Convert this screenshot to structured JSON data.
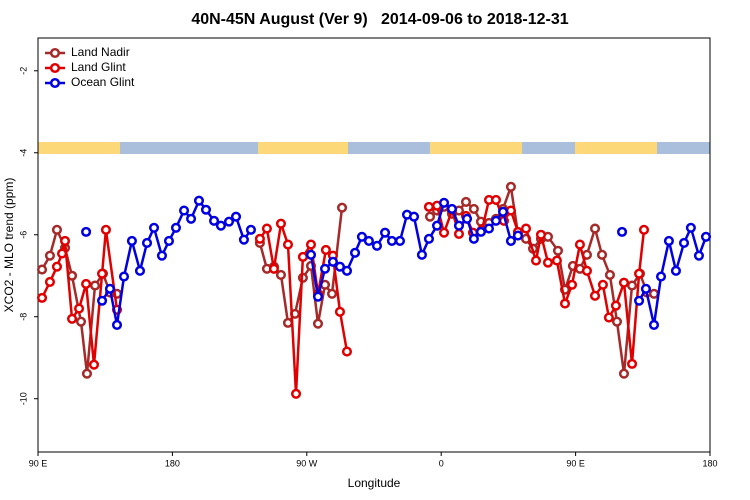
{
  "chart_data": {
    "type": "line",
    "title": "40N-45N August (Ver 9)   2014-09-06 to 2018-12-31",
    "x_label": "Longitude",
    "y_label": "XCO2 - MLO trend (ppm)",
    "xlim": [
      90,
      540
    ],
    "ylim": [
      -11.3,
      -1.2
    ],
    "xticks": [
      {
        "value": 90,
        "label": "90 E"
      },
      180,
      {
        "value": 270,
        "label": "90 W"
      },
      {
        "value": 360,
        "label": "0"
      },
      {
        "value": 450,
        "label": "90 E"
      },
      {
        "value": 540,
        "label": "180"
      }
    ],
    "yticks": [
      -2,
      -4,
      -6,
      -8,
      -10
    ],
    "legend": "top-left",
    "series": [
      {
        "name": "Land Nadir",
        "color": "#a52a2a",
        "x": [
          92.7,
          98.0,
          102.7,
          108.1,
          112.8,
          118.8,
          122.8,
          128.2,
          133.5,
          138.2,
          142.9,
          null,
          238.6,
          243.3,
          248.0,
          252.7,
          257.4,
          262.1,
          267.4,
          272.8,
          277.5,
          282.2,
          286.9,
          293.6,
          null,
          352.5,
          357.2,
          361.9,
          367.2,
          371.9,
          376.6,
          381.9,
          386.6,
          392.0,
          396.7,
          401.4,
          406.7,
          411.4,
          416.8,
          421.5,
          426.8,
          431.5,
          438.2,
          442.9,
          448.2,
          452.9,
          457.6,
          463.0,
          467.7,
          473.0,
          477.7,
          482.4,
          487.8,
          493.1,
          497.8,
          502.5
        ],
        "values": [
          -6.85,
          -6.51,
          -5.88,
          -6.32,
          -7.0,
          -8.12,
          -9.39,
          -7.24,
          -6.95,
          -7.41,
          -7.44,
          null,
          -6.2,
          -6.83,
          -6.78,
          -6.98,
          -8.15,
          -7.93,
          -7.05,
          -6.76,
          -8.17,
          -7.22,
          -7.44,
          -5.34,
          null,
          -5.56,
          -5.41,
          -5.32,
          -5.49,
          -5.41,
          -5.2,
          -5.37,
          -5.68,
          -5.71,
          -5.61,
          -5.37,
          -4.83,
          -5.98,
          -6.1,
          -6.34,
          -6.1,
          -6.05,
          -6.39,
          -7.34,
          -6.76,
          -6.83,
          -6.49,
          -5.85,
          -6.49,
          -6.98,
          -8.12,
          -9.39,
          -7.24,
          -6.95,
          -7.41,
          -7.44
        ]
      },
      {
        "name": "Land Glint",
        "color": "#e00000",
        "x": [
          92.7,
          98.0,
          102.7,
          106.1,
          108.1,
          112.8,
          117.5,
          122.2,
          127.5,
          132.9,
          135.5,
          142.9,
          null,
          238.6,
          243.3,
          248.0,
          252.7,
          257.4,
          262.8,
          267.4,
          272.8,
          277.5,
          282.8,
          287.5,
          292.2,
          296.9,
          null,
          351.8,
          357.2,
          361.9,
          367.2,
          371.9,
          376.6,
          381.3,
          387.3,
          392.0,
          396.7,
          402.0,
          406.7,
          411.4,
          416.8,
          423.5,
          426.8,
          431.5,
          437.5,
          442.9,
          447.6,
          452.9,
          457.6,
          463.0,
          468.3,
          472.3,
          477.0,
          482.4,
          487.8,
          492.5,
          495.8
        ],
        "values": [
          -7.54,
          -7.15,
          -6.78,
          -6.46,
          -6.15,
          -8.05,
          -7.8,
          -7.2,
          -9.17,
          -6.95,
          -5.88,
          -7.83,
          null,
          -6.1,
          -5.85,
          -6.83,
          -5.73,
          -6.24,
          -9.88,
          -6.54,
          -6.24,
          -7.44,
          -6.37,
          -6.51,
          -7.88,
          -8.85,
          null,
          -5.32,
          -5.29,
          -5.95,
          -5.41,
          -5.98,
          -5.54,
          -5.95,
          -5.88,
          -5.15,
          -5.15,
          -5.66,
          -5.41,
          -5.93,
          -5.85,
          -6.63,
          -6.0,
          -6.68,
          -6.63,
          -7.68,
          -7.22,
          -6.24,
          -6.88,
          -7.49,
          -7.22,
          -8.02,
          -7.73,
          -7.17,
          -9.15,
          -6.95,
          -5.88
        ]
      },
      {
        "name": "Ocean Glint",
        "color": "#0000e0",
        "x": [
          122.2,
          null,
          132.9,
          138.2,
          142.9,
          147.6,
          152.9,
          158.3,
          163.0,
          167.7,
          173.0,
          177.7,
          182.4,
          187.8,
          192.5,
          197.8,
          202.5,
          207.9,
          212.5,
          217.9,
          222.6,
          227.9,
          232.6,
          null,
          272.8,
          277.5,
          282.2,
          287.5,
          292.2,
          296.9,
          302.3,
          306.9,
          311.6,
          317.0,
          322.4,
          327.0,
          332.4,
          337.1,
          341.8,
          347.1,
          351.8,
          357.2,
          361.9,
          367.2,
          371.9,
          377.3,
          381.9,
          386.6,
          392.0,
          396.7,
          401.4,
          406.7,
          411.4,
          null,
          481.1,
          null,
          492.5,
          497.1,
          502.5,
          507.2,
          512.5,
          517.2,
          522.6,
          527.2,
          532.6,
          537.3
        ],
        "values": [
          -5.93,
          null,
          -7.61,
          -7.32,
          -8.2,
          -7.02,
          -6.15,
          -6.88,
          -6.2,
          -5.83,
          -6.51,
          -6.15,
          -5.83,
          -5.41,
          -5.61,
          -5.17,
          -5.39,
          -5.66,
          -5.78,
          -5.68,
          -5.56,
          -6.12,
          -5.88,
          null,
          -6.49,
          -7.51,
          -6.83,
          -6.66,
          -6.78,
          -6.88,
          -6.44,
          -6.05,
          -6.15,
          -6.27,
          -5.95,
          -6.15,
          -6.15,
          -5.51,
          -5.56,
          -6.49,
          -6.1,
          -5.78,
          -5.22,
          -5.37,
          -5.78,
          -5.61,
          -6.1,
          -5.93,
          -5.85,
          -5.66,
          -5.44,
          -6.15,
          -6.02,
          null,
          -5.93,
          null,
          -7.61,
          -7.32,
          -8.2,
          -7.02,
          -6.15,
          -6.88,
          -6.2,
          -5.83,
          -6.51,
          -6.05
        ]
      }
    ]
  }
}
